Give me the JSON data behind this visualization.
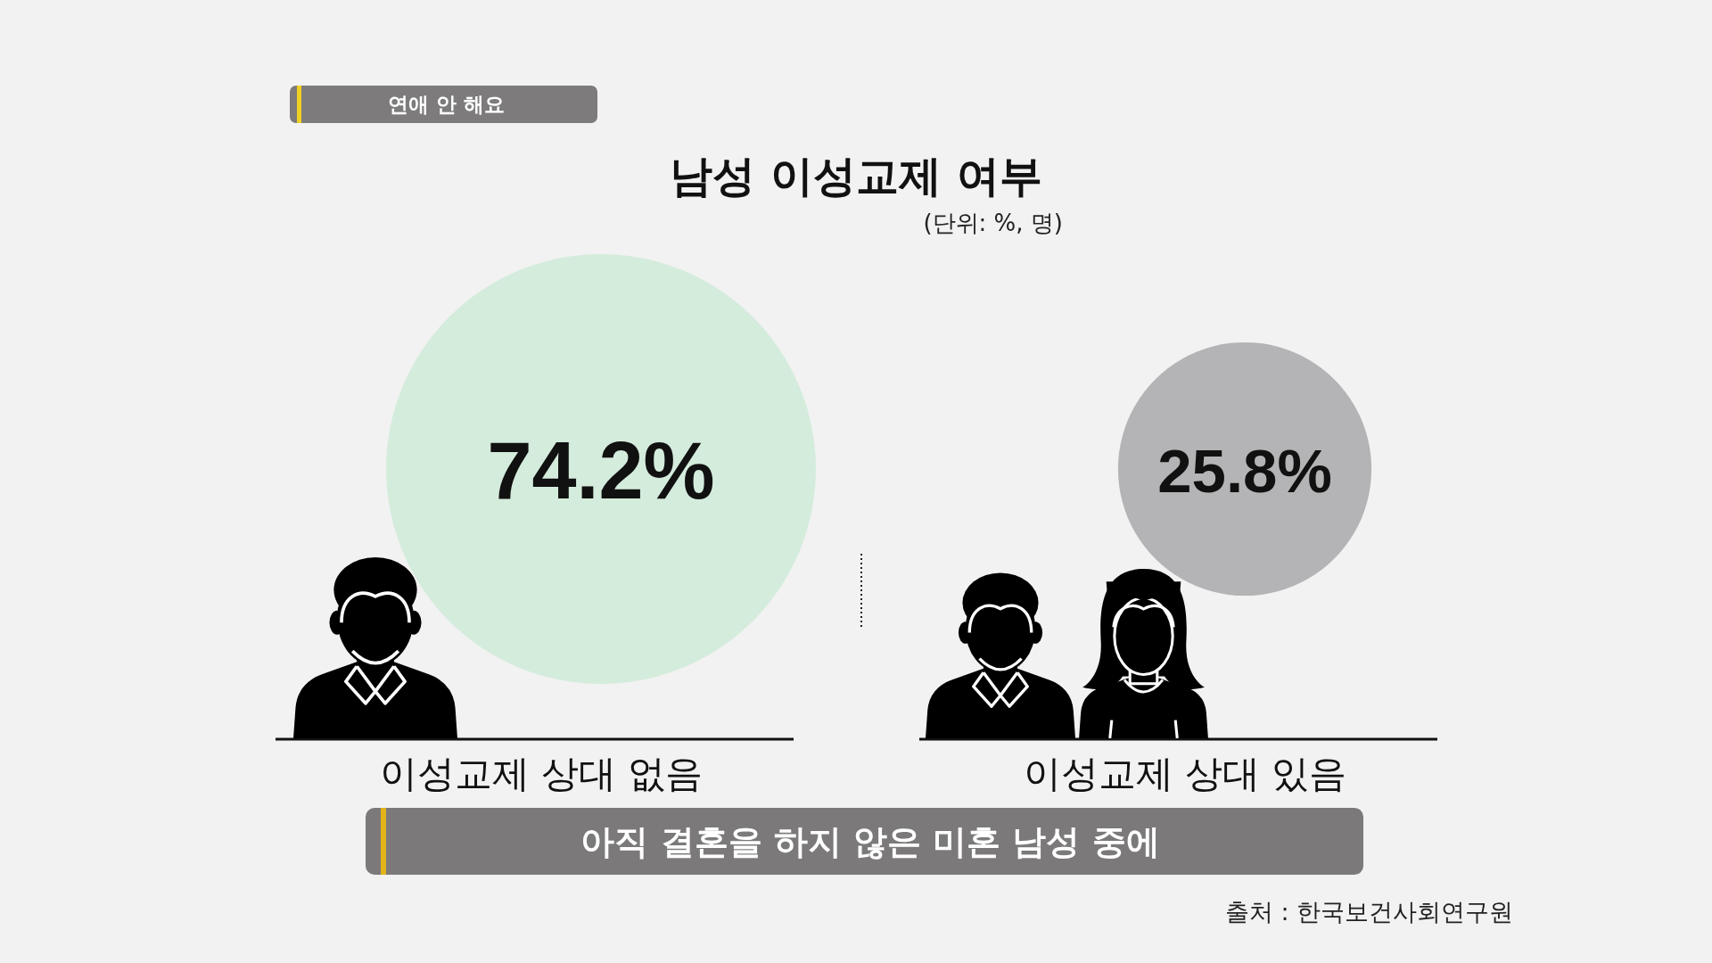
{
  "chart_data": {
    "type": "other",
    "title": "남성 이성교제 여부",
    "subtitle": "(단위: %, 명)",
    "categories": [
      "이성교제 상대 없음",
      "이성교제 상대 있음"
    ],
    "values": [
      74.2,
      25.8
    ],
    "value_labels": [
      "74.2%",
      "25.8%"
    ],
    "colors": [
      "#d4ecdc",
      "#b4b3b5"
    ],
    "annotations": [
      "연애 안 해요",
      "아직 결혼을 하지 않은 미혼 남성 중에",
      "출처 : 한국보건사회연구원"
    ]
  }
}
